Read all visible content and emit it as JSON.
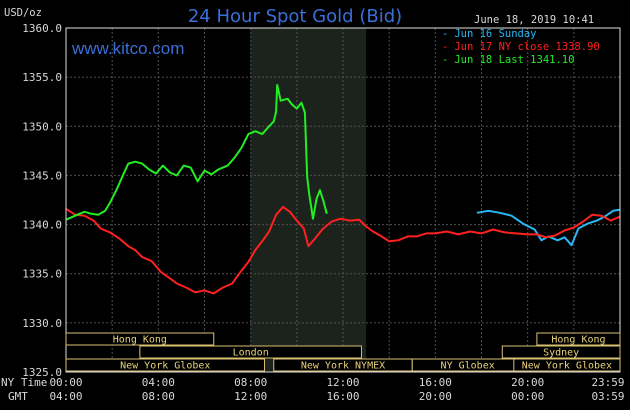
{
  "header": {
    "title": "24 Hour Spot Gold (Bid)",
    "unit": "USD/oz",
    "brand": "www.kitco.com",
    "timestamp": "June 18, 2019 10:41"
  },
  "legend": [
    {
      "text": "Jun 16 Sunday",
      "color": "#2ab7f5"
    },
    {
      "text": "Jun 17 NY close 1338.90",
      "color": "#ff2020"
    },
    {
      "text": "Jun 18 Last 1341.10",
      "color": "#22ee22"
    }
  ],
  "sessions": [
    {
      "label": "Hong Kong",
      "row": 0,
      "start": 0,
      "end": 6.4
    },
    {
      "label": "London",
      "row": 1,
      "start": 3.2,
      "end": 12.8
    },
    {
      "label": "New York Globex",
      "row": 2,
      "start": 0,
      "end": 8.6
    },
    {
      "label": "New York NYMEX",
      "row": 2,
      "start": 9.0,
      "end": 15.0
    },
    {
      "label": "NY Globex",
      "row": 2,
      "start": 15.0,
      "end": 19.8
    },
    {
      "label": "Hong Kong",
      "row": 0,
      "start": 20.4,
      "end": 24.0
    },
    {
      "label": "Sydney",
      "row": 1,
      "start": 18.9,
      "end": 24.0
    },
    {
      "label": "New York Globex",
      "row": 2,
      "start": 19.4,
      "end": 24.0
    }
  ],
  "time_axis": {
    "row1_label": "NY Time",
    "row2_label": "GMT",
    "ny_ticks": [
      "00:00",
      "04:00",
      "08:00",
      "12:00",
      "16:00",
      "20:00",
      "23:59"
    ],
    "gmt_ticks": [
      "04:00",
      "08:00",
      "12:00",
      "16:00",
      "20:00",
      "00:00",
      "03:59"
    ]
  },
  "chart_data": {
    "type": "line",
    "title": "24 Hour Spot Gold (Bid)",
    "ylabel": "USD/oz",
    "x_unit": "NY time hours",
    "xlim": [
      0,
      24
    ],
    "ylim": [
      1325,
      1360
    ],
    "yticks": [
      "1325.0",
      "1330.0",
      "1335.0",
      "1340.0",
      "1345.0",
      "1350.0",
      "1355.0",
      "1360.0"
    ],
    "shaded_range": [
      8.0,
      13.0
    ],
    "series": [
      {
        "name": "Jun 16 Sunday",
        "color": "#2ab7f5",
        "points": [
          [
            17.8,
            1341.2
          ],
          [
            18.3,
            1341.4
          ],
          [
            18.8,
            1341.2
          ],
          [
            19.3,
            1340.9
          ],
          [
            19.8,
            1340.1
          ],
          [
            20.3,
            1339.5
          ],
          [
            20.6,
            1338.4
          ],
          [
            20.9,
            1338.8
          ],
          [
            21.3,
            1338.4
          ],
          [
            21.6,
            1338.7
          ],
          [
            21.9,
            1337.9
          ],
          [
            22.2,
            1339.6
          ],
          [
            22.6,
            1340.1
          ],
          [
            23.0,
            1340.4
          ],
          [
            23.4,
            1340.9
          ],
          [
            23.7,
            1341.4
          ],
          [
            23.99,
            1341.5
          ]
        ]
      },
      {
        "name": "Jun 17 NY close 1338.90",
        "color": "#ff2020",
        "points": [
          [
            0.0,
            1341.6
          ],
          [
            0.4,
            1341.0
          ],
          [
            0.8,
            1340.9
          ],
          [
            1.2,
            1340.4
          ],
          [
            1.5,
            1339.6
          ],
          [
            1.9,
            1339.2
          ],
          [
            2.3,
            1338.6
          ],
          [
            2.7,
            1337.8
          ],
          [
            3.0,
            1337.4
          ],
          [
            3.3,
            1336.7
          ],
          [
            3.7,
            1336.3
          ],
          [
            4.1,
            1335.2
          ],
          [
            4.4,
            1334.7
          ],
          [
            4.8,
            1334.0
          ],
          [
            5.2,
            1333.6
          ],
          [
            5.6,
            1333.1
          ],
          [
            6.0,
            1333.3
          ],
          [
            6.4,
            1333.0
          ],
          [
            6.8,
            1333.6
          ],
          [
            7.2,
            1334.0
          ],
          [
            7.5,
            1335.0
          ],
          [
            7.9,
            1336.2
          ],
          [
            8.2,
            1337.4
          ],
          [
            8.5,
            1338.3
          ],
          [
            8.8,
            1339.3
          ],
          [
            9.1,
            1341.0
          ],
          [
            9.4,
            1341.8
          ],
          [
            9.7,
            1341.3
          ],
          [
            10.0,
            1340.4
          ],
          [
            10.3,
            1339.6
          ],
          [
            10.5,
            1337.8
          ],
          [
            10.8,
            1338.6
          ],
          [
            11.1,
            1339.5
          ],
          [
            11.5,
            1340.3
          ],
          [
            11.9,
            1340.6
          ],
          [
            12.3,
            1340.4
          ],
          [
            12.7,
            1340.5
          ],
          [
            13.0,
            1339.8
          ],
          [
            13.3,
            1339.3
          ],
          [
            13.6,
            1338.9
          ],
          [
            14.0,
            1338.3
          ],
          [
            14.4,
            1338.4
          ],
          [
            14.8,
            1338.8
          ],
          [
            15.2,
            1338.8
          ],
          [
            15.6,
            1339.1
          ],
          [
            16.0,
            1339.1
          ],
          [
            16.5,
            1339.3
          ],
          [
            17.0,
            1339.0
          ],
          [
            17.5,
            1339.3
          ],
          [
            18.0,
            1339.1
          ],
          [
            18.5,
            1339.5
          ],
          [
            19.0,
            1339.2
          ],
          [
            19.5,
            1339.1
          ],
          [
            20.0,
            1339.0
          ],
          [
            20.4,
            1339.0
          ],
          [
            20.8,
            1338.7
          ],
          [
            21.2,
            1338.9
          ],
          [
            21.6,
            1339.4
          ],
          [
            22.0,
            1339.7
          ],
          [
            22.4,
            1340.3
          ],
          [
            22.8,
            1341.0
          ],
          [
            23.2,
            1340.9
          ],
          [
            23.6,
            1340.4
          ],
          [
            23.99,
            1340.8
          ]
        ]
      },
      {
        "name": "Jun 18 Last 1341.10",
        "color": "#22ee22",
        "points": [
          [
            0.0,
            1340.5
          ],
          [
            0.4,
            1340.9
          ],
          [
            0.8,
            1341.3
          ],
          [
            1.1,
            1341.1
          ],
          [
            1.4,
            1341.0
          ],
          [
            1.7,
            1341.4
          ],
          [
            1.9,
            1342.2
          ],
          [
            2.2,
            1343.6
          ],
          [
            2.5,
            1345.2
          ],
          [
            2.7,
            1346.2
          ],
          [
            3.0,
            1346.4
          ],
          [
            3.3,
            1346.2
          ],
          [
            3.6,
            1345.6
          ],
          [
            3.9,
            1345.2
          ],
          [
            4.2,
            1346.0
          ],
          [
            4.5,
            1345.3
          ],
          [
            4.8,
            1345.0
          ],
          [
            5.1,
            1346.0
          ],
          [
            5.4,
            1345.8
          ],
          [
            5.7,
            1344.4
          ],
          [
            6.0,
            1345.5
          ],
          [
            6.3,
            1345.1
          ],
          [
            6.6,
            1345.6
          ],
          [
            7.0,
            1346.0
          ],
          [
            7.3,
            1346.8
          ],
          [
            7.6,
            1347.8
          ],
          [
            7.9,
            1349.2
          ],
          [
            8.2,
            1349.5
          ],
          [
            8.5,
            1349.2
          ],
          [
            8.8,
            1350.0
          ],
          [
            9.0,
            1350.5
          ],
          [
            9.1,
            1351.5
          ],
          [
            9.15,
            1354.2
          ],
          [
            9.3,
            1352.6
          ],
          [
            9.6,
            1352.8
          ],
          [
            9.8,
            1352.2
          ],
          [
            10.0,
            1351.8
          ],
          [
            10.2,
            1352.4
          ],
          [
            10.35,
            1351.4
          ],
          [
            10.45,
            1344.8
          ],
          [
            10.55,
            1342.9
          ],
          [
            10.7,
            1340.6
          ],
          [
            10.85,
            1342.6
          ],
          [
            11.0,
            1343.5
          ],
          [
            11.15,
            1342.4
          ],
          [
            11.3,
            1341.1
          ]
        ]
      }
    ]
  }
}
